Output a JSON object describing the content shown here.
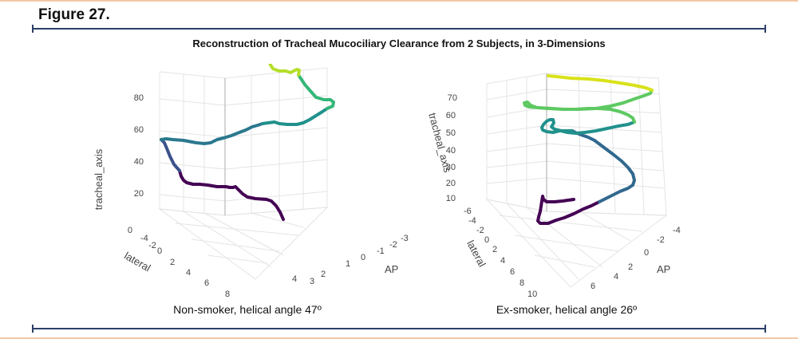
{
  "figure": {
    "label": "Figure 27.",
    "title": "Reconstruction of Tracheal Mucociliary Clearance from 2 Subjects, in 3-Dimensions"
  },
  "chart_data": [
    {
      "type": "line",
      "caption": "Non-smoker, helical angle 47º",
      "zlabel": "tracheal_axis",
      "xlabel": "lateral",
      "ylabel": "AP",
      "z_ticks": [
        "0",
        "20",
        "40",
        "60",
        "80"
      ],
      "x_ticks": [
        "-4",
        "-2",
        "0",
        "2",
        "4",
        "6",
        "8"
      ],
      "y_ticks": [
        "-3",
        "-2",
        "-1",
        "0",
        "1",
        "2",
        "3",
        "4"
      ],
      "colorscale": [
        "#440154",
        "#31688e",
        "#35b779",
        "#fde725"
      ],
      "grid": true
    },
    {
      "type": "line",
      "caption": "Ex-smoker, helical angle 26º",
      "zlabel": "tracheal_axis",
      "xlabel": "lateral",
      "ylabel": "AP",
      "z_ticks": [
        "10",
        "20",
        "30",
        "40",
        "50",
        "60",
        "70"
      ],
      "x_ticks": [
        "-6",
        "-4",
        "-2",
        "0",
        "2",
        "4",
        "6",
        "8",
        "10"
      ],
      "y_ticks": [
        "6",
        "4",
        "2",
        "0",
        "-2",
        "-4"
      ],
      "colorscale": [
        "#440154",
        "#31688e",
        "#35b779",
        "#fde725"
      ],
      "grid": true
    }
  ]
}
